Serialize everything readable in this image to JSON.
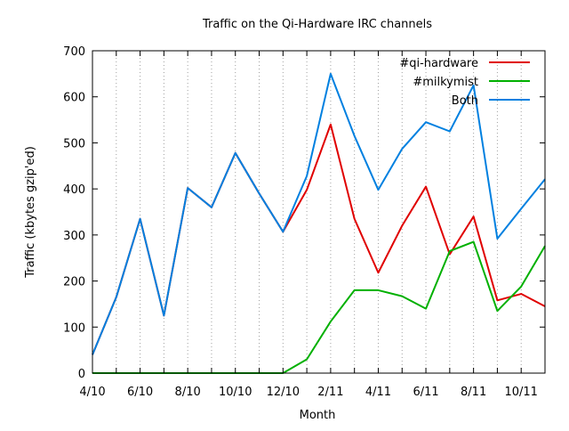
{
  "chart_data": {
    "type": "line",
    "title": "Traffic on the Qi-Hardware IRC channels",
    "xlabel": "Month",
    "ylabel": "Traffic (kbytes gzip'ed)",
    "ylim": [
      0,
      700
    ],
    "yticks": [
      0,
      100,
      200,
      300,
      400,
      500,
      600,
      700
    ],
    "x": [
      "2010-04",
      "2010-05",
      "2010-06",
      "2010-07",
      "2010-08",
      "2010-09",
      "2010-10",
      "2010-11",
      "2010-12",
      "2011-01",
      "2011-02",
      "2011-03",
      "2011-04",
      "2011-05",
      "2011-06",
      "2011-07",
      "2011-08",
      "2011-09",
      "2011-10",
      "2011-11"
    ],
    "xticks": [
      {
        "x": "2010-04",
        "label": "4/10"
      },
      {
        "x": "2010-06",
        "label": "6/10"
      },
      {
        "x": "2010-08",
        "label": "8/10"
      },
      {
        "x": "2010-10",
        "label": "10/10"
      },
      {
        "x": "2010-12",
        "label": "12/10"
      },
      {
        "x": "2011-02",
        "label": "2/11"
      },
      {
        "x": "2011-04",
        "label": "4/11"
      },
      {
        "x": "2011-06",
        "label": "6/11"
      },
      {
        "x": "2011-08",
        "label": "8/11"
      },
      {
        "x": "2011-10",
        "label": "10/11"
      }
    ],
    "xlim": [
      "2010-04",
      "2011-11"
    ],
    "grid": "vertical dotted lines at each month",
    "legend": "top-right",
    "series": [
      {
        "name": "#qi-hardware",
        "color": "#e00000",
        "values": [
          40,
          165,
          335,
          125,
          402,
          360,
          478,
          390,
          307,
          398,
          540,
          335,
          218,
          320,
          405,
          258,
          340,
          158,
          172,
          145
        ]
      },
      {
        "name": "#milkymist",
        "color": "#00b000",
        "values": [
          0,
          0,
          0,
          0,
          0,
          0,
          0,
          0,
          0,
          30,
          112,
          180,
          180,
          167,
          140,
          265,
          285,
          135,
          188,
          276
        ]
      },
      {
        "name": "Both",
        "color": "#0080e0",
        "values": [
          40,
          165,
          335,
          125,
          402,
          360,
          478,
          390,
          307,
          428,
          650,
          515,
          398,
          487,
          545,
          525,
          625,
          292,
          357,
          421
        ]
      }
    ]
  }
}
